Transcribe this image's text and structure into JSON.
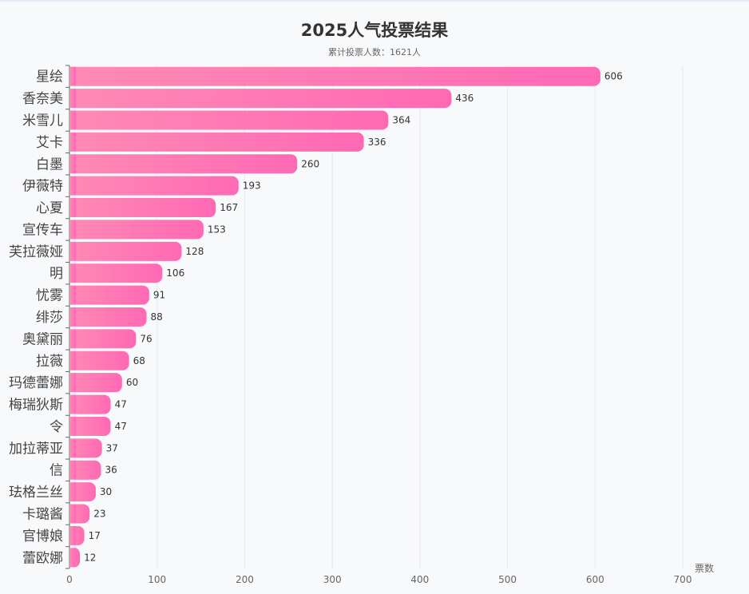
{
  "chart_data": {
    "type": "bar",
    "orientation": "horizontal",
    "title": "2025人气投票结果",
    "subtitle": "累计投票人数：1621人",
    "xlabel": "票数",
    "xlim": [
      0,
      700
    ],
    "xticks": [
      0,
      100,
      200,
      300,
      400,
      500,
      600,
      700
    ],
    "grid": true,
    "categories": [
      "星绘",
      "香奈美",
      "米雪儿",
      "艾卡",
      "白墨",
      "伊薇特",
      "心夏",
      "宣传车",
      "芙拉薇娅",
      "明",
      "忧雾",
      "绯莎",
      "奥黛丽",
      "拉薇",
      "玛德蕾娜",
      "梅瑞狄斯",
      "令",
      "加拉蒂亚",
      "信",
      "珐格兰丝",
      "卡璐酱",
      "官博娘",
      "蕾欧娜"
    ],
    "values": [
      606,
      436,
      364,
      336,
      260,
      193,
      167,
      153,
      128,
      106,
      91,
      88,
      76,
      68,
      60,
      47,
      47,
      37,
      36,
      30,
      23,
      17,
      12
    ],
    "colors": {
      "bar_start": "#ff8ab4",
      "bar_end": "#ff69b4"
    }
  }
}
